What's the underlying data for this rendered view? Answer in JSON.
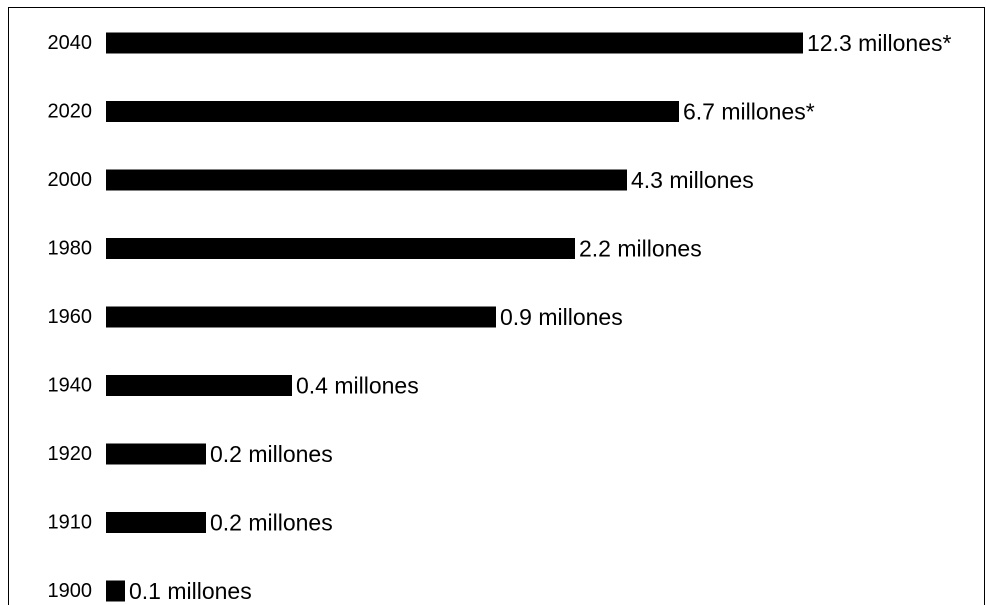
{
  "chart_data": {
    "type": "bar",
    "orientation": "horizontal",
    "title": "",
    "xlabel": "",
    "ylabel": "",
    "grid": false,
    "legend": "none",
    "bar_color": "#000000",
    "categories": [
      "2040",
      "2020",
      "2000",
      "1980",
      "1960",
      "1940",
      "1920",
      "1910",
      "1900"
    ],
    "values": [
      12.3,
      6.7,
      4.3,
      2.2,
      0.9,
      0.4,
      0.2,
      0.2,
      0.1
    ],
    "data_labels": [
      "12.3 millones*",
      "6.7 millones*",
      "4.3 millones",
      "2.2 millones",
      "0.9 millones",
      "0.4 millones",
      "0.2 millones",
      "0.2 millones",
      "0.1 millones"
    ]
  }
}
